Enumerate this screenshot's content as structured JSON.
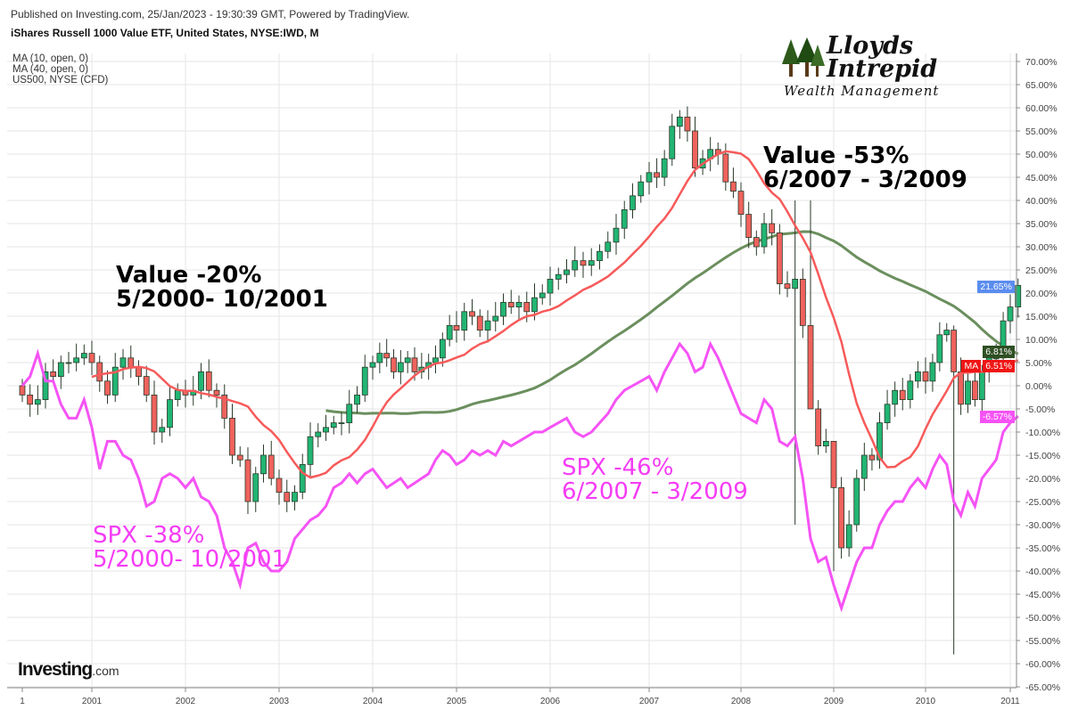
{
  "header": {
    "published": "Published on Investing.com, 25/Jan/2023 - 19:30:39 GMT, Powered by TradingView.",
    "symbol": "iShares Russell 1000 Value ETF, United States, NYSE:IWD, M"
  },
  "legend": [
    "MA (10, open, 0)",
    "MA (40, open, 0)",
    "US500, NYSE (CFD)"
  ],
  "logo": {
    "line1": "Lloyds",
    "line2": "Intrepid",
    "line3": "Wealth Management"
  },
  "watermark": {
    "brand": "Investing",
    "suffix": ".com"
  },
  "annotations": {
    "value2000": [
      "Value -20%",
      "5/2000- 10/2001"
    ],
    "value2007": [
      "Value -53%",
      "6/2007 - 3/2009"
    ],
    "spx2000": [
      "SPX -38%",
      "5/2000- 10/2001"
    ],
    "spx2007": [
      "SPX -46%",
      "6/2007 - 3/2009"
    ]
  },
  "badges": {
    "last": "21.65%",
    "ma40": "6.81%",
    "ma_tag": "MA",
    "ma10": "6.51%",
    "spx": "-6.57%"
  },
  "colors": {
    "up": "#22b573",
    "down": "#f0625d",
    "ma10": "#f75a5a",
    "ma40": "#6b8f5e",
    "spx": "#f553f5",
    "last": "#5b8def",
    "ma40_badge": "#2f4f23",
    "ma10_badge": "#f01515"
  },
  "chart_data": {
    "type": "candlestick",
    "title": "iShares Russell 1000 Value ETF, United States, NYSE:IWD, M",
    "start_month": "2000-04",
    "x_tick_labels": [
      "1",
      "2001",
      "2002",
      "2003",
      "2004",
      "2005",
      "2006",
      "2007",
      "2008",
      "2009",
      "2010",
      "2011"
    ],
    "y_unit": "%",
    "ylim": [
      -65,
      70
    ],
    "y_tick_labels": [
      "70.00%",
      "65.00%",
      "60.00%",
      "55.00%",
      "50.00%",
      "45.00%",
      "40.00%",
      "35.00%",
      "30.00%",
      "25.00%",
      "20.00%",
      "15.00%",
      "10.00%",
      "5.00%",
      "0.00%",
      "-5.00%",
      "-10.00%",
      "-15.00%",
      "-20.00%",
      "-25.00%",
      "-30.00%",
      "-35.00%",
      "-40.00%",
      "-45.00%",
      "-50.00%",
      "-55.00%",
      "-60.00%",
      "-65.00%"
    ],
    "iwd_close": [
      -2,
      -4,
      -3,
      3,
      2,
      5,
      5,
      6,
      7,
      5,
      1,
      -2,
      4,
      6,
      4,
      2,
      -2,
      -10,
      -9,
      -3,
      -1,
      -2,
      -1,
      3,
      -1,
      -2,
      -7,
      -15,
      -16,
      -25,
      -19,
      -15,
      -20,
      -23,
      -25,
      -23,
      -17,
      -11,
      -10,
      -9,
      -8,
      -8,
      -4,
      -2,
      4,
      5,
      7,
      6,
      3,
      5,
      6,
      3,
      4,
      5,
      6,
      10,
      13,
      12,
      16,
      15,
      12,
      14,
      15,
      18,
      17,
      18,
      16,
      19,
      20,
      23,
      24,
      25,
      27,
      26,
      27,
      29,
      31,
      34,
      38,
      41,
      44,
      46,
      45,
      49,
      56,
      58,
      55,
      47,
      49,
      51,
      50,
      44,
      42,
      37,
      32,
      30,
      35,
      33,
      22,
      21,
      23,
      13,
      -5,
      -13,
      -12,
      -22,
      -35,
      -30,
      -20,
      -15,
      -16,
      -8,
      -4,
      -1,
      -3,
      1,
      3,
      1,
      5,
      11,
      12,
      3,
      -4,
      1,
      -3,
      3,
      6,
      6,
      14,
      17,
      21.65
    ],
    "wick_overrides": {
      "102": [
        40,
        -2
      ],
      "121": [
        13,
        -58
      ],
      "105": [
        -12,
        -40
      ],
      "100": [
        40,
        -30
      ]
    },
    "spx_line": [
      0,
      2,
      7,
      1,
      1,
      -4,
      -7,
      -7,
      -3,
      -9,
      -18,
      -12,
      -12,
      -15,
      -16,
      -20,
      -26,
      -25,
      -20,
      -19,
      -20,
      -22,
      -20,
      -24,
      -25,
      -28,
      -35,
      -38,
      -43,
      -35,
      -34,
      -38,
      -40,
      -40,
      -38,
      -33,
      -31,
      -29,
      -28,
      -26,
      -22,
      -21,
      -19,
      -21,
      -19,
      -18,
      -20,
      -22,
      -21,
      -20,
      -22,
      -21,
      -20,
      -19,
      -16,
      -14,
      -15,
      -17,
      -16,
      -14,
      -15,
      -14,
      -15,
      -12,
      -13,
      -12,
      -11,
      -10,
      -10,
      -9,
      -8,
      -7,
      -10,
      -11,
      -10,
      -8,
      -6,
      -3,
      -1,
      0,
      1,
      2,
      -1,
      3,
      6,
      9,
      7,
      3,
      4,
      9,
      6,
      2,
      -2,
      -6,
      -7,
      -8,
      -3,
      -5,
      -12,
      -13,
      -11,
      -20,
      -33,
      -38,
      -37,
      -43,
      -48,
      -43,
      -38,
      -35,
      -35,
      -30,
      -27,
      -25,
      -25,
      -22,
      -20,
      -22,
      -18,
      -15,
      -17,
      -25,
      -28,
      -23,
      -26,
      -20,
      -18,
      -16,
      -10,
      -8,
      -6.57
    ],
    "ma_periods": [
      10,
      40
    ]
  }
}
